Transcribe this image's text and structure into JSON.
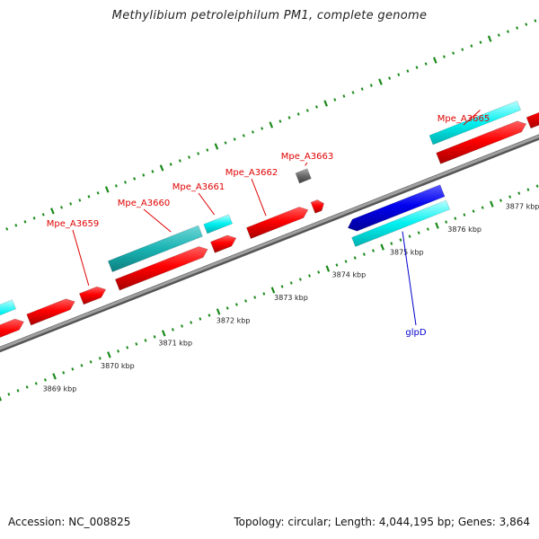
{
  "title": "Methylibium petroleiphilum PM1, complete genome",
  "footer": {
    "accession": "Accession: NC_008825",
    "summary": "Topology: circular; Length: 4,044,195 bp; Genes: 3,864"
  },
  "colors": {
    "backbone": "#7a7a7a",
    "tick": "#1a8a1a",
    "cds_forward": "#ff0000",
    "cds_reverse": "#0000ff",
    "gene_bar": "#00ffff",
    "gene_bar_dark": "#1ab3b3",
    "other_feature": "#666666",
    "forward_label": "#e00000",
    "reverse_label": "#0000cc"
  },
  "scale_labels": [
    "3869 kbp",
    "3870 kbp",
    "3871 kbp",
    "3872 kbp",
    "3873 kbp",
    "3874 kbp",
    "3875 kbp",
    "3876 kbp",
    "3877 kbp"
  ],
  "gene_labels": [
    {
      "text": "Mpe_A3659",
      "strand": "forward"
    },
    {
      "text": "Mpe_A3660",
      "strand": "forward"
    },
    {
      "text": "Mpe_A3661",
      "strand": "forward"
    },
    {
      "text": "Mpe_A3662",
      "strand": "forward"
    },
    {
      "text": "Mpe_A3663",
      "strand": "forward"
    },
    {
      "text": "Mpe_A3665",
      "strand": "forward"
    },
    {
      "text": "glpD",
      "strand": "reverse"
    }
  ]
}
